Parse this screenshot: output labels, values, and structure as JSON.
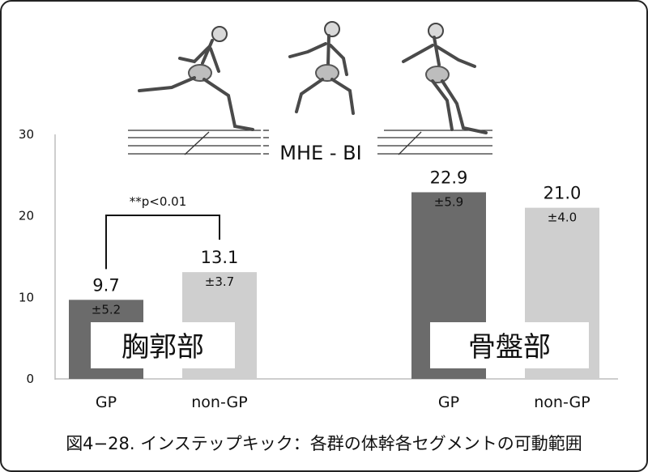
{
  "figure": {
    "caption": "図4−28. インステップキック：各群の体幹各セグメントの可動範囲",
    "illustration_label": "MHE - BI"
  },
  "colors": {
    "gp": "#6b6b6b",
    "non_gp": "#cfcfcf",
    "axis": "#bdbdbd",
    "text": "#111111"
  },
  "chart_data": {
    "type": "bar",
    "title": "",
    "xlabel": "",
    "ylabel": "",
    "ylim": [
      0,
      30
    ],
    "yticks": [
      0,
      10,
      20,
      30
    ],
    "groups": [
      {
        "name": "胸郭部",
        "bars": [
          {
            "category": "GP",
            "value": 9.7,
            "value_label": "9.7",
            "sd_label": "±5.2",
            "color": "#6b6b6b"
          },
          {
            "category": "non-GP",
            "value": 13.1,
            "value_label": "13.1",
            "sd_label": "±3.7",
            "color": "#cfcfcf"
          }
        ]
      },
      {
        "name": "骨盤部",
        "bars": [
          {
            "category": "GP",
            "value": 22.9,
            "value_label": "22.9",
            "sd_label": "±5.9",
            "color": "#6b6b6b"
          },
          {
            "category": "non-GP",
            "value": 21.0,
            "value_label": "21.0",
            "sd_label": "±4.0",
            "color": "#cfcfcf"
          }
        ]
      }
    ],
    "annotations": [
      {
        "text": "**p<0.01",
        "group": 0
      }
    ]
  }
}
